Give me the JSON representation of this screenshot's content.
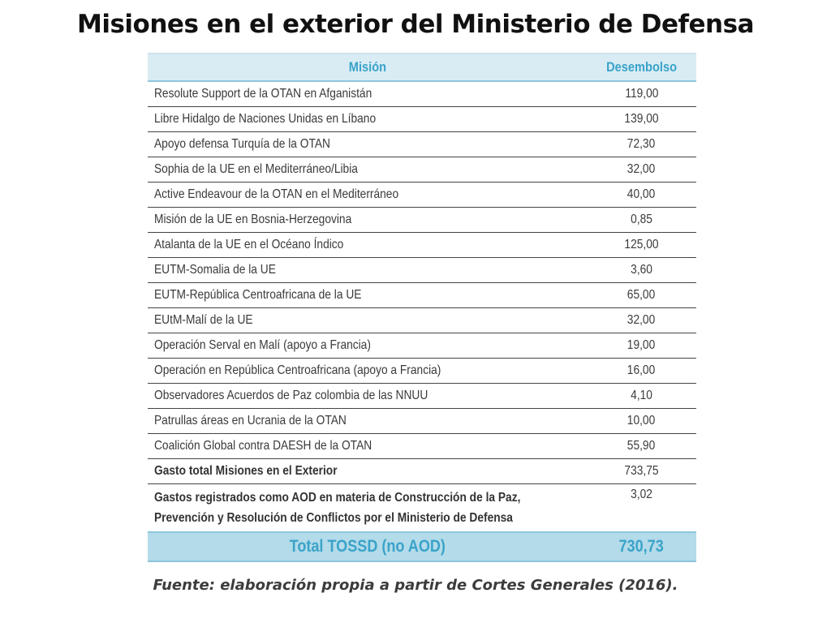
{
  "title": "Misiones en el exterior del Ministerio de Defensa",
  "table": {
    "headers": {
      "mision": "Misión",
      "desembolso": "Desembolso"
    },
    "rows": [
      {
        "mision": "Resolute Support de la OTAN en Afganistán",
        "desembolso": "119,00"
      },
      {
        "mision": "Libre Hidalgo de Naciones Unidas en Líbano",
        "desembolso": "139,00"
      },
      {
        "mision": "Apoyo defensa Turquía de la OTAN",
        "desembolso": "72,30"
      },
      {
        "mision": "Sophia de la UE en el Mediterráneo/Libia",
        "desembolso": "32,00"
      },
      {
        "mision": "Active Endeavour de la OTAN en el Mediterráneo",
        "desembolso": "40,00"
      },
      {
        "mision": "Misión de la UE en Bosnia-Herzegovina",
        "desembolso": "0,85"
      },
      {
        "mision": "Atalanta de la UE en el Océano Índico",
        "desembolso": "125,00"
      },
      {
        "mision": "EUTM-Somalia de la UE",
        "desembolso": "3,60"
      },
      {
        "mision": "EUTM-República Centroafricana de la UE",
        "desembolso": "65,00"
      },
      {
        "mision": "EUtM-Malí de la UE",
        "desembolso": "32,00"
      },
      {
        "mision": "Operación Serval en Malí (apoyo a Francia)",
        "desembolso": "19,00"
      },
      {
        "mision": "Operación en República Centroafricana (apoyo a Francia)",
        "desembolso": "16,00"
      },
      {
        "mision": "Observadores Acuerdos de Paz colombia de las NNUU",
        "desembolso": "4,10"
      },
      {
        "mision": "Patrullas áreas en Ucrania de la OTAN",
        "desembolso": "10,00"
      },
      {
        "mision": "Coalición Global contra DAESH de la OTAN",
        "desembolso": "55,90"
      }
    ],
    "gasto_total": {
      "label": "Gasto total Misiones en el Exterior",
      "value": "733,75"
    },
    "aod": {
      "label_line1": "Gastos registrados como AOD en materia de Construcción de la Paz,",
      "label_line2": "Prevención y Resolución de Conflictos por el Ministerio de Defensa",
      "value": "3,02"
    },
    "total": {
      "label": "Total TOSSD (no AOD)",
      "value": "730,73"
    }
  },
  "source": "Fuente: elaboración propia a partir de Cortes Generales (2016)."
}
